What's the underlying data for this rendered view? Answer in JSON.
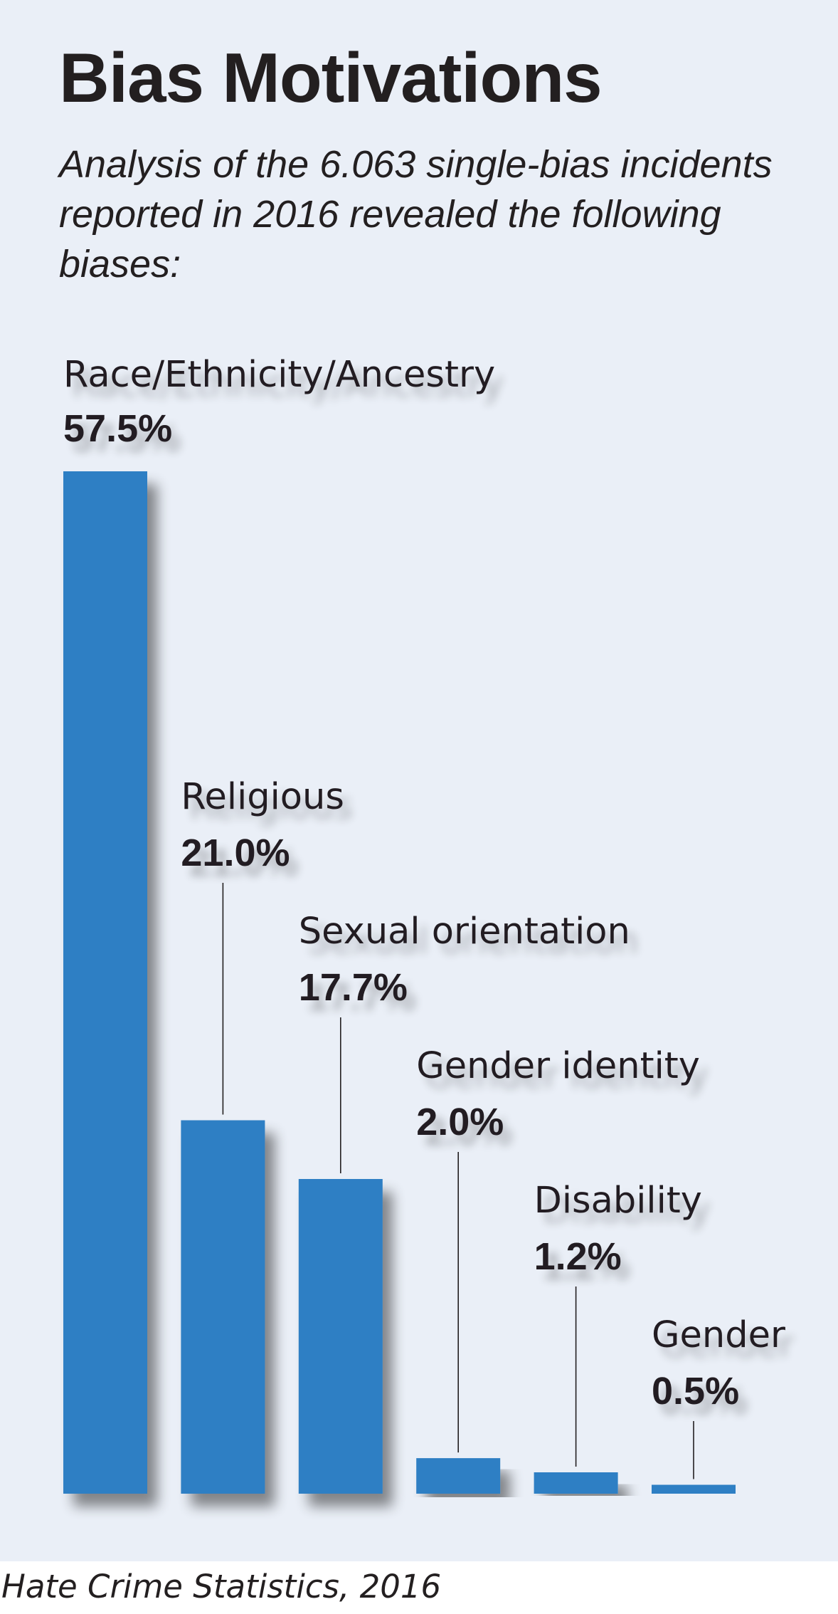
{
  "header": {
    "title": "Bias Motivations",
    "subtitle": "Analysis of the 6.063 single-bias incidents reported in 2016 revealed the following biases:"
  },
  "footer": {
    "source": "Hate Crime Statistics, 2016"
  },
  "colors": {
    "background": "#eaeff7",
    "bar": "#2e7fc4",
    "text": "#231f20",
    "leader_line": "#231f20"
  },
  "chart_data": {
    "type": "bar",
    "title": "Bias Motivations",
    "xlabel": "",
    "ylabel": "",
    "ylim": [
      0,
      57.5
    ],
    "grid": false,
    "legend": "none",
    "categories": [
      "Race/Ethnicity/Ancestry",
      "Religious",
      "Sexual orientation",
      "Gender identity",
      "Disability",
      "Gender"
    ],
    "values": [
      57.5,
      21.0,
      17.7,
      2.0,
      1.2,
      0.5
    ],
    "value_labels": [
      "57.5%",
      "21.0%",
      "17.7%",
      "2.0%",
      "1.2%",
      "0.5%"
    ]
  }
}
